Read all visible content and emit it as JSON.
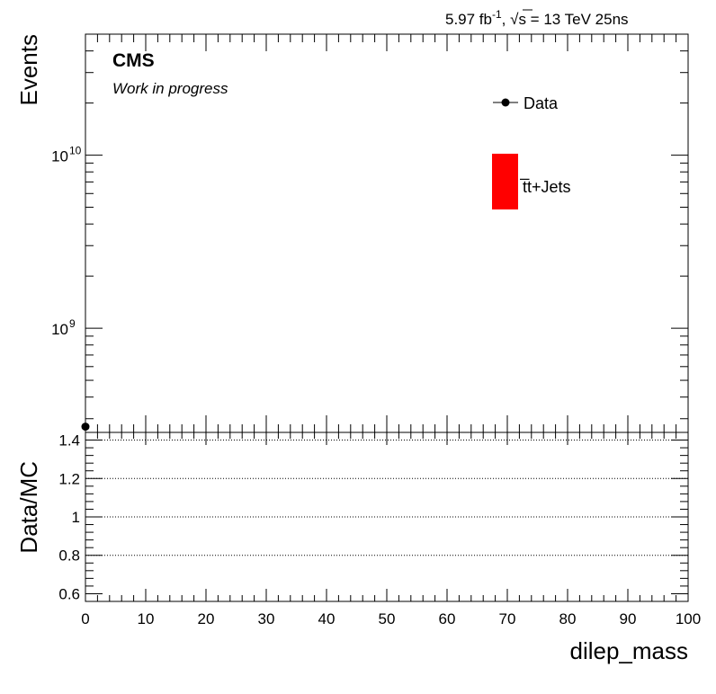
{
  "header": {
    "cms_label": "CMS",
    "status_label": "Work in progress",
    "lumi_value": "5.97 fb",
    "lumi_exponent": "-1",
    "lumi_rest": ", √s = 13 TeV 25ns"
  },
  "chart_data": [
    {
      "type": "scatter",
      "panel": "main",
      "ylabel": "Events",
      "yscale": "log",
      "ylim": [
        250000000,
        50000000000
      ],
      "xlim": [
        0,
        100
      ],
      "y_tick_labels": [
        {
          "base": "10",
          "exp": "10",
          "value": 10000000000
        },
        {
          "base": "10",
          "exp": "9",
          "value": 1000000000
        }
      ],
      "legend": {
        "placement": "top-right",
        "entries": [
          {
            "label": "Data",
            "marker": "point",
            "color": "#000000"
          },
          {
            "label": "t̅t+Jets",
            "marker": "box",
            "color": "#ff0000"
          }
        ]
      },
      "series": [
        {
          "name": "Data",
          "color": "#000000",
          "points": [
            {
              "x": 0,
              "y": 270000000
            }
          ]
        },
        {
          "name": "t̅t+Jets",
          "color": "#ff0000",
          "points": []
        }
      ]
    },
    {
      "type": "line",
      "panel": "ratio",
      "ylabel": "Data/MC",
      "xlabel": "dilep_mass",
      "ylim": [
        0.56,
        1.44
      ],
      "xlim": [
        0,
        100
      ],
      "y_ticks": [
        0.6,
        0.8,
        1,
        1.2,
        1.4
      ],
      "y_tick_labels": [
        "0.6",
        "0.8",
        "1",
        "1.2",
        "1.4"
      ],
      "x_ticks": [
        0,
        10,
        20,
        30,
        40,
        50,
        60,
        70,
        80,
        90,
        100
      ],
      "x_tick_labels": [
        "0",
        "10",
        "20",
        "30",
        "40",
        "50",
        "60",
        "70",
        "80",
        "90",
        "100"
      ],
      "gridlines_y": [
        0.8,
        1,
        1.2,
        1.4
      ],
      "grid": "dotted-horizontal",
      "series": []
    }
  ]
}
